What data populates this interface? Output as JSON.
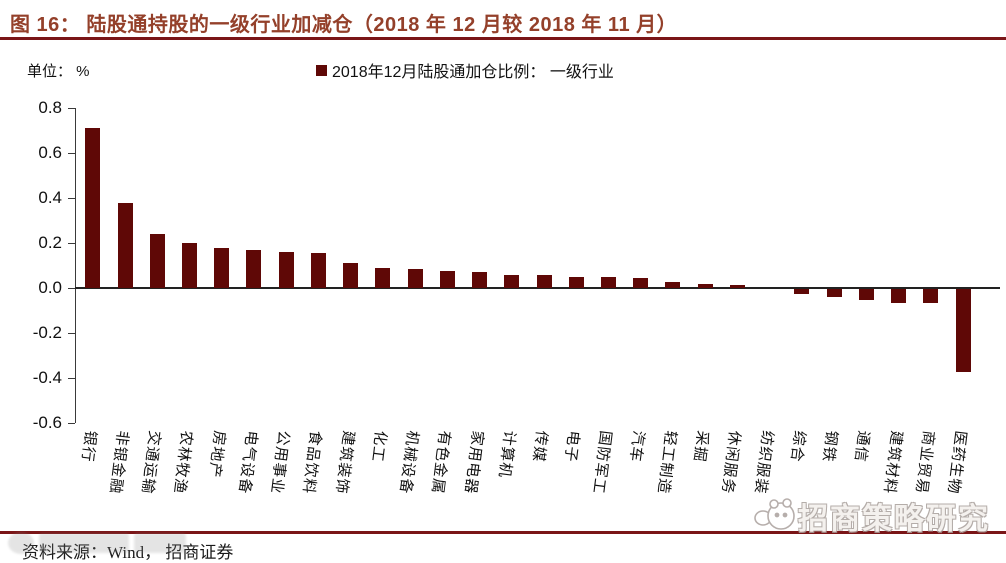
{
  "header": {
    "title": "图 16：  陆股通持股的一级行业加减仓（2018 年 12 月较 2018 年 11 月）"
  },
  "unit_label": "单位：  %",
  "legend": {
    "label": "2018年12月陆股通加仓比例：  一级行业",
    "marker_color": "#5f0806"
  },
  "chart_data": {
    "type": "bar",
    "title": "陆股通持股的一级行业加减仓（2018年12月较2018年11月）",
    "xlabel": "",
    "ylabel": "单位：%",
    "ylim": [
      -0.6,
      0.8
    ],
    "yticks": [
      0.8,
      0.6,
      0.4,
      0.2,
      0.0,
      -0.2,
      -0.4,
      -0.6
    ],
    "grid": false,
    "legend_position": "top",
    "bar_color": "#5f0806",
    "categories": [
      "银行",
      "非银金融",
      "交通运输",
      "农林牧渔",
      "房地产",
      "电气设备",
      "公用事业",
      "食品饮料",
      "建筑装饰",
      "化工",
      "机械设备",
      "有色金属",
      "家用电器",
      "计算机",
      "传媒",
      "电子",
      "国防军工",
      "汽车",
      "轻工制造",
      "采掘",
      "休闲服务",
      "纺织服装",
      "综合",
      "钢铁",
      "通信",
      "建筑材料",
      "商业贸易",
      "医药生物"
    ],
    "values": [
      0.71,
      0.38,
      0.24,
      0.2,
      0.18,
      0.17,
      0.16,
      0.155,
      0.11,
      0.09,
      0.085,
      0.075,
      0.07,
      0.06,
      0.06,
      0.05,
      0.05,
      0.045,
      0.025,
      0.02,
      0.015,
      0.0,
      -0.02,
      -0.035,
      -0.05,
      -0.06,
      -0.06,
      -0.37
    ]
  },
  "footer": {
    "source": "资料来源：Wind，  招商证券"
  },
  "watermark": {
    "text": "招商策略研究"
  }
}
